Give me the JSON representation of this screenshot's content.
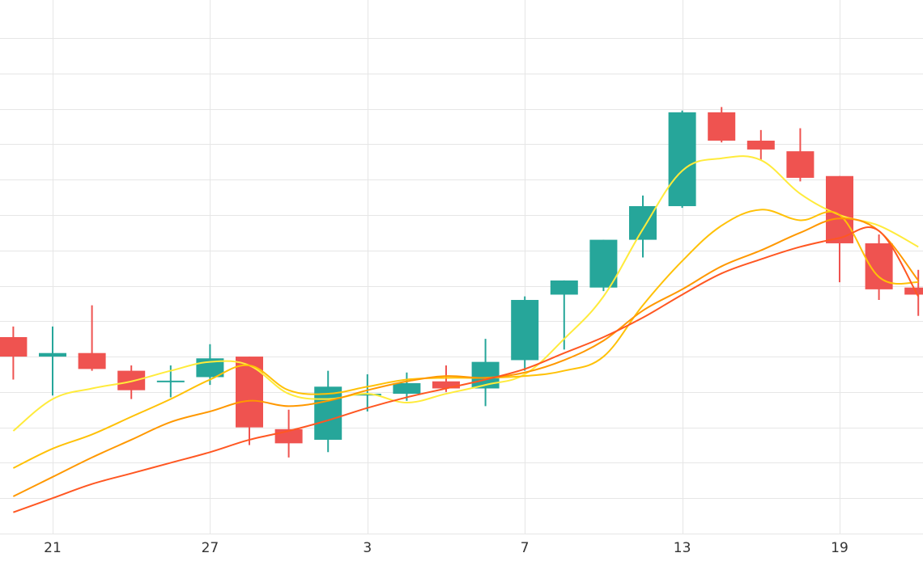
{
  "chart_data": {
    "type": "candlestick",
    "x_ticks": [
      {
        "index": 1,
        "label": "21"
      },
      {
        "index": 5,
        "label": "27"
      },
      {
        "index": 9,
        "label": "3"
      },
      {
        "index": 13,
        "label": "7"
      },
      {
        "index": 17,
        "label": "13"
      },
      {
        "index": 21,
        "label": "19"
      }
    ],
    "ylim": [
      0,
      14
    ],
    "grid": true,
    "colors": {
      "up": "#26a69a",
      "down": "#ef5350"
    },
    "candles": [
      {
        "x": 0,
        "open": 5.55,
        "high": 5.85,
        "low": 4.35,
        "close": 5.0
      },
      {
        "x": 1,
        "open": 5.0,
        "high": 5.85,
        "low": 3.9,
        "close": 5.1
      },
      {
        "x": 2,
        "open": 5.1,
        "high": 6.45,
        "low": 4.6,
        "close": 4.65
      },
      {
        "x": 3,
        "open": 4.6,
        "high": 4.75,
        "low": 3.8,
        "close": 4.05
      },
      {
        "x": 4,
        "open": 4.28,
        "high": 4.75,
        "low": 3.85,
        "close": 4.32
      },
      {
        "x": 5,
        "open": 4.42,
        "high": 5.35,
        "low": 4.2,
        "close": 4.95
      },
      {
        "x": 6,
        "open": 5.0,
        "high": 5.0,
        "low": 2.5,
        "close": 3.0
      },
      {
        "x": 7,
        "open": 2.95,
        "high": 3.5,
        "low": 2.15,
        "close": 2.55
      },
      {
        "x": 8,
        "open": 2.65,
        "high": 4.6,
        "low": 2.3,
        "close": 4.15
      },
      {
        "x": 9,
        "open": 3.9,
        "high": 4.5,
        "low": 3.45,
        "close": 3.95
      },
      {
        "x": 10,
        "open": 3.95,
        "high": 4.55,
        "low": 3.75,
        "close": 4.25
      },
      {
        "x": 11,
        "open": 4.3,
        "high": 4.75,
        "low": 4.0,
        "close": 4.1
      },
      {
        "x": 12,
        "open": 4.1,
        "high": 5.5,
        "low": 3.6,
        "close": 4.85
      },
      {
        "x": 13,
        "open": 4.9,
        "high": 6.7,
        "low": 4.6,
        "close": 6.6
      },
      {
        "x": 14,
        "open": 6.75,
        "high": 7.15,
        "low": 5.2,
        "close": 7.15
      },
      {
        "x": 15,
        "open": 6.95,
        "high": 8.3,
        "low": 6.85,
        "close": 8.3
      },
      {
        "x": 16,
        "open": 8.3,
        "high": 9.55,
        "low": 7.8,
        "close": 9.25
      },
      {
        "x": 17,
        "open": 9.25,
        "high": 11.95,
        "low": 9.2,
        "close": 11.9
      },
      {
        "x": 18,
        "open": 11.9,
        "high": 12.05,
        "low": 11.05,
        "close": 11.1
      },
      {
        "x": 19,
        "open": 11.1,
        "high": 11.4,
        "low": 10.55,
        "close": 10.85
      },
      {
        "x": 20,
        "open": 10.8,
        "high": 11.45,
        "low": 9.95,
        "close": 10.05
      },
      {
        "x": 21,
        "open": 10.1,
        "high": 10.1,
        "low": 7.1,
        "close": 8.2
      },
      {
        "x": 22,
        "open": 8.2,
        "high": 8.45,
        "low": 6.6,
        "close": 6.9
      },
      {
        "x": 23,
        "open": 6.95,
        "high": 7.45,
        "low": 6.15,
        "close": 6.75
      }
    ],
    "moving_averages": [
      {
        "color": "#ffeb3b",
        "values": [
          2.9,
          3.8,
          4.1,
          4.3,
          4.6,
          4.85,
          4.75,
          3.95,
          3.8,
          3.95,
          3.7,
          3.95,
          4.2,
          4.5,
          5.5,
          6.7,
          8.6,
          10.25,
          10.6,
          10.55,
          9.6,
          9.0,
          8.7,
          8.1
        ]
      },
      {
        "color": "#ffc107",
        "values": [
          1.85,
          2.4,
          2.8,
          3.3,
          3.8,
          4.35,
          4.75,
          4.05,
          3.95,
          4.15,
          4.35,
          4.4,
          4.4,
          4.45,
          4.6,
          5.0,
          6.45,
          7.7,
          8.7,
          9.15,
          8.85,
          9.0,
          7.25,
          7.1
        ]
      },
      {
        "color": "#ff9800",
        "values": [
          1.05,
          1.6,
          2.15,
          2.65,
          3.15,
          3.45,
          3.75,
          3.6,
          3.75,
          4.05,
          4.3,
          4.45,
          4.4,
          4.55,
          4.9,
          5.45,
          6.3,
          6.9,
          7.55,
          8.0,
          8.5,
          8.9,
          8.55,
          7.15
        ]
      },
      {
        "color": "#ff5722",
        "values": [
          0.6,
          1.0,
          1.4,
          1.7,
          2.0,
          2.3,
          2.65,
          2.9,
          3.2,
          3.55,
          3.85,
          4.1,
          4.35,
          4.65,
          5.1,
          5.55,
          6.1,
          6.75,
          7.35,
          7.75,
          8.1,
          8.35,
          8.55,
          6.7
        ]
      }
    ]
  }
}
